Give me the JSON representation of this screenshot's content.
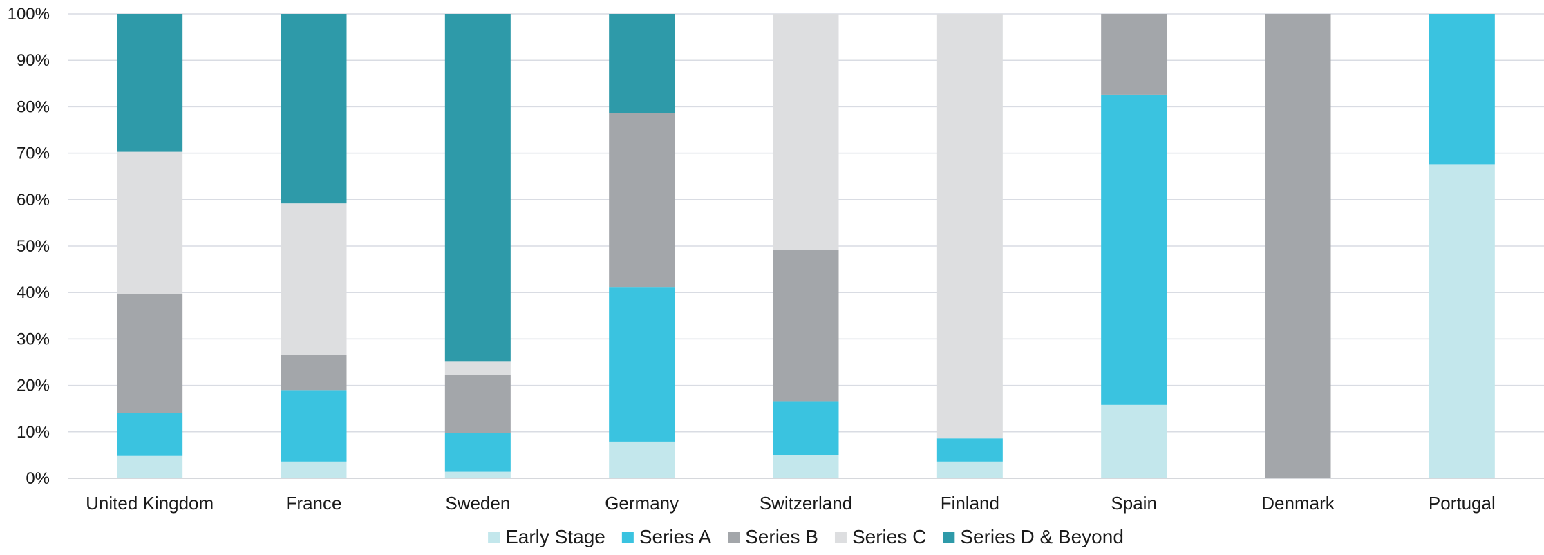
{
  "chart_data": {
    "type": "bar",
    "stacked": true,
    "percent": true,
    "categories": [
      "United Kingdom",
      "France",
      "Sweden",
      "Germany",
      "Switzerland",
      "Finland",
      "Spain",
      "Denmark",
      "Portugal"
    ],
    "series": [
      {
        "name": "Early Stage",
        "color": "#c3e7ec",
        "values": [
          4.8,
          3.6,
          1.4,
          7.9,
          5.0,
          3.6,
          15.8,
          0.0,
          67.5
        ]
      },
      {
        "name": "Series A",
        "color": "#3ac3e0",
        "values": [
          9.3,
          15.4,
          8.4,
          33.3,
          11.6,
          5.0,
          66.8,
          0.0,
          32.5
        ]
      },
      {
        "name": "Series B",
        "color": "#a3a6aa",
        "values": [
          25.5,
          7.6,
          12.4,
          37.4,
          32.6,
          0.0,
          17.4,
          100.0,
          0.0
        ]
      },
      {
        "name": "Series C",
        "color": "#dddee0",
        "values": [
          30.7,
          32.6,
          2.9,
          0.0,
          50.8,
          91.4,
          0.0,
          0.0,
          0.0
        ]
      },
      {
        "name": "Series D & Beyond",
        "color": "#2e9aa9",
        "values": [
          29.7,
          40.8,
          74.9,
          21.4,
          0.0,
          0.0,
          0.0,
          0.0,
          0.0
        ]
      }
    ],
    "yticks": [
      "0%",
      "10%",
      "20%",
      "30%",
      "40%",
      "50%",
      "60%",
      "70%",
      "80%",
      "90%",
      "100%"
    ],
    "ylim": [
      0,
      100
    ],
    "grid": true,
    "legend": "bottom-center",
    "title": "",
    "xlabel": "",
    "ylabel": ""
  }
}
